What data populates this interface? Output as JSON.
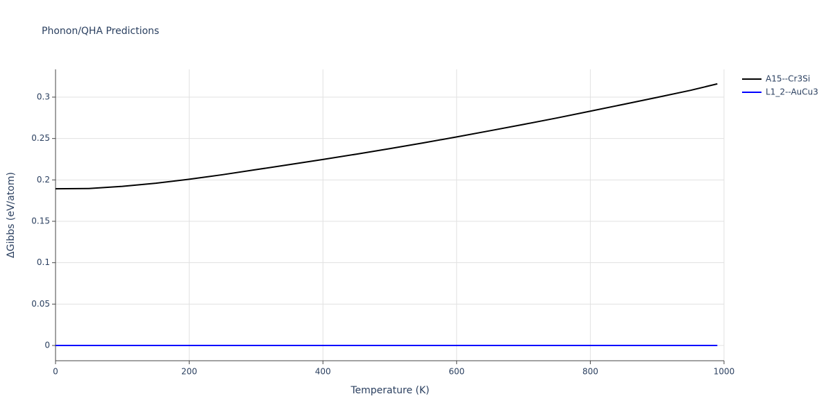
{
  "chart_data": {
    "type": "line",
    "title": "Phonon/QHA Predictions",
    "x_label": "Temperature (K)",
    "y_label": "ΔGibbs (eV/atom)",
    "x": [
      0,
      50,
      100,
      150,
      200,
      250,
      300,
      350,
      400,
      450,
      500,
      550,
      600,
      650,
      700,
      750,
      800,
      850,
      900,
      950,
      990
    ],
    "series": [
      {
        "name": "A15--Cr3Si",
        "color": "#000000",
        "values": [
          0.1893,
          0.1896,
          0.1922,
          0.196,
          0.2008,
          0.2063,
          0.2124,
          0.2185,
          0.2247,
          0.2311,
          0.2378,
          0.2447,
          0.2519,
          0.2594,
          0.267,
          0.2748,
          0.283,
          0.2913,
          0.2997,
          0.3082,
          0.316
        ]
      },
      {
        "name": "L1_2--AuCu3",
        "color": "#0000ff",
        "values": [
          0,
          0,
          0,
          0,
          0,
          0,
          0,
          0,
          0,
          0,
          0,
          0,
          0,
          0,
          0,
          0,
          0,
          0,
          0,
          0,
          0
        ]
      }
    ],
    "xlim": [
      0,
      1000
    ],
    "xticks": [
      0,
      200,
      400,
      600,
      800,
      1000
    ],
    "ylim": [
      -0.0184,
      0.3335
    ],
    "yticks": [
      0,
      0.05,
      0.1,
      0.15,
      0.2,
      0.25,
      0.3
    ],
    "grid": true,
    "legend": "right"
  }
}
